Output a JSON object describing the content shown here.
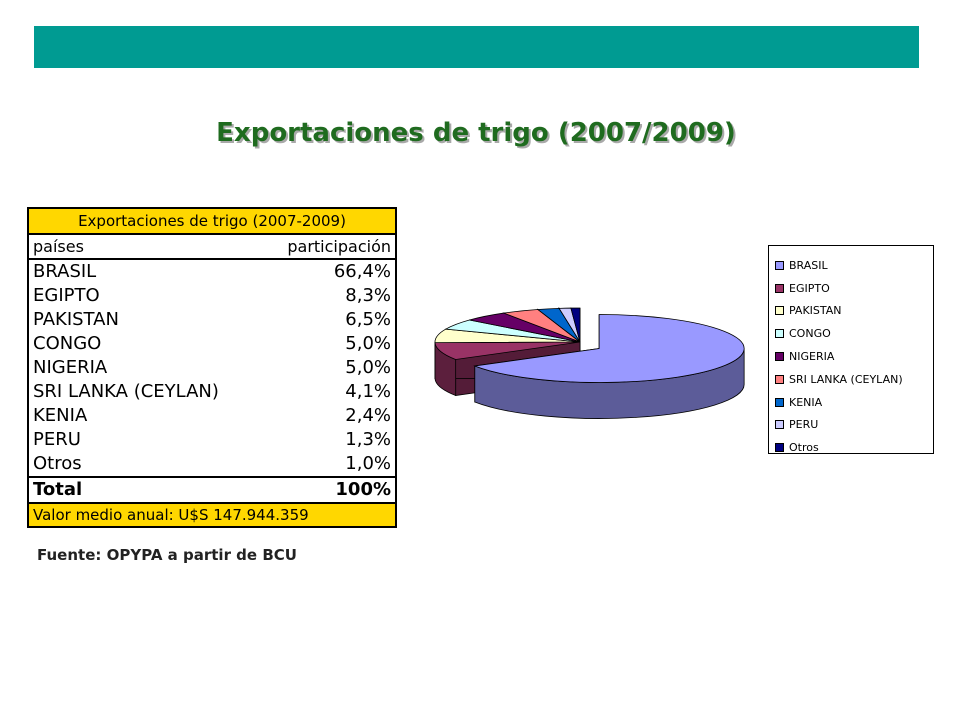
{
  "slide": {
    "title": "Exportaciones de trigo (2007/2009)",
    "source": "Fuente: OPYPA a partir de BCU"
  },
  "table": {
    "title": "Exportaciones de trigo (2007-2009)",
    "col_country": "países",
    "col_share": "participación",
    "rows": [
      {
        "country": "BRASIL",
        "share": "66,4%"
      },
      {
        "country": "EGIPTO",
        "share": "8,3%"
      },
      {
        "country": "PAKISTAN",
        "share": "6,5%"
      },
      {
        "country": "CONGO",
        "share": "5,0%"
      },
      {
        "country": "NIGERIA",
        "share": "5,0%"
      },
      {
        "country": "SRI LANKA (CEYLAN)",
        "share": "4,1%"
      },
      {
        "country": "KENIA",
        "share": "2,4%"
      },
      {
        "country": "PERU",
        "share": "1,3%"
      },
      {
        "country": "Otros",
        "share": "1,0%"
      }
    ],
    "total_label": "Total",
    "total_value": "100%",
    "footer": "Valor medio anual: U$S 147.944.359"
  },
  "chart_data": {
    "type": "pie",
    "title": "",
    "categories": [
      "BRASIL",
      "EGIPTO",
      "PAKISTAN",
      "CONGO",
      "NIGERIA",
      "SRI LANKA (CEYLAN)",
      "KENIA",
      "PERU",
      "Otros"
    ],
    "values": [
      66.4,
      8.3,
      6.5,
      5.0,
      5.0,
      4.1,
      2.4,
      1.3,
      1.0
    ],
    "colors": [
      "#9999ff",
      "#993366",
      "#ffffcc",
      "#ccffff",
      "#660066",
      "#ff8080",
      "#0066cc",
      "#ccccff",
      "#000080"
    ],
    "exploded": "BRASIL",
    "legend_position": "right",
    "style": "3d"
  }
}
